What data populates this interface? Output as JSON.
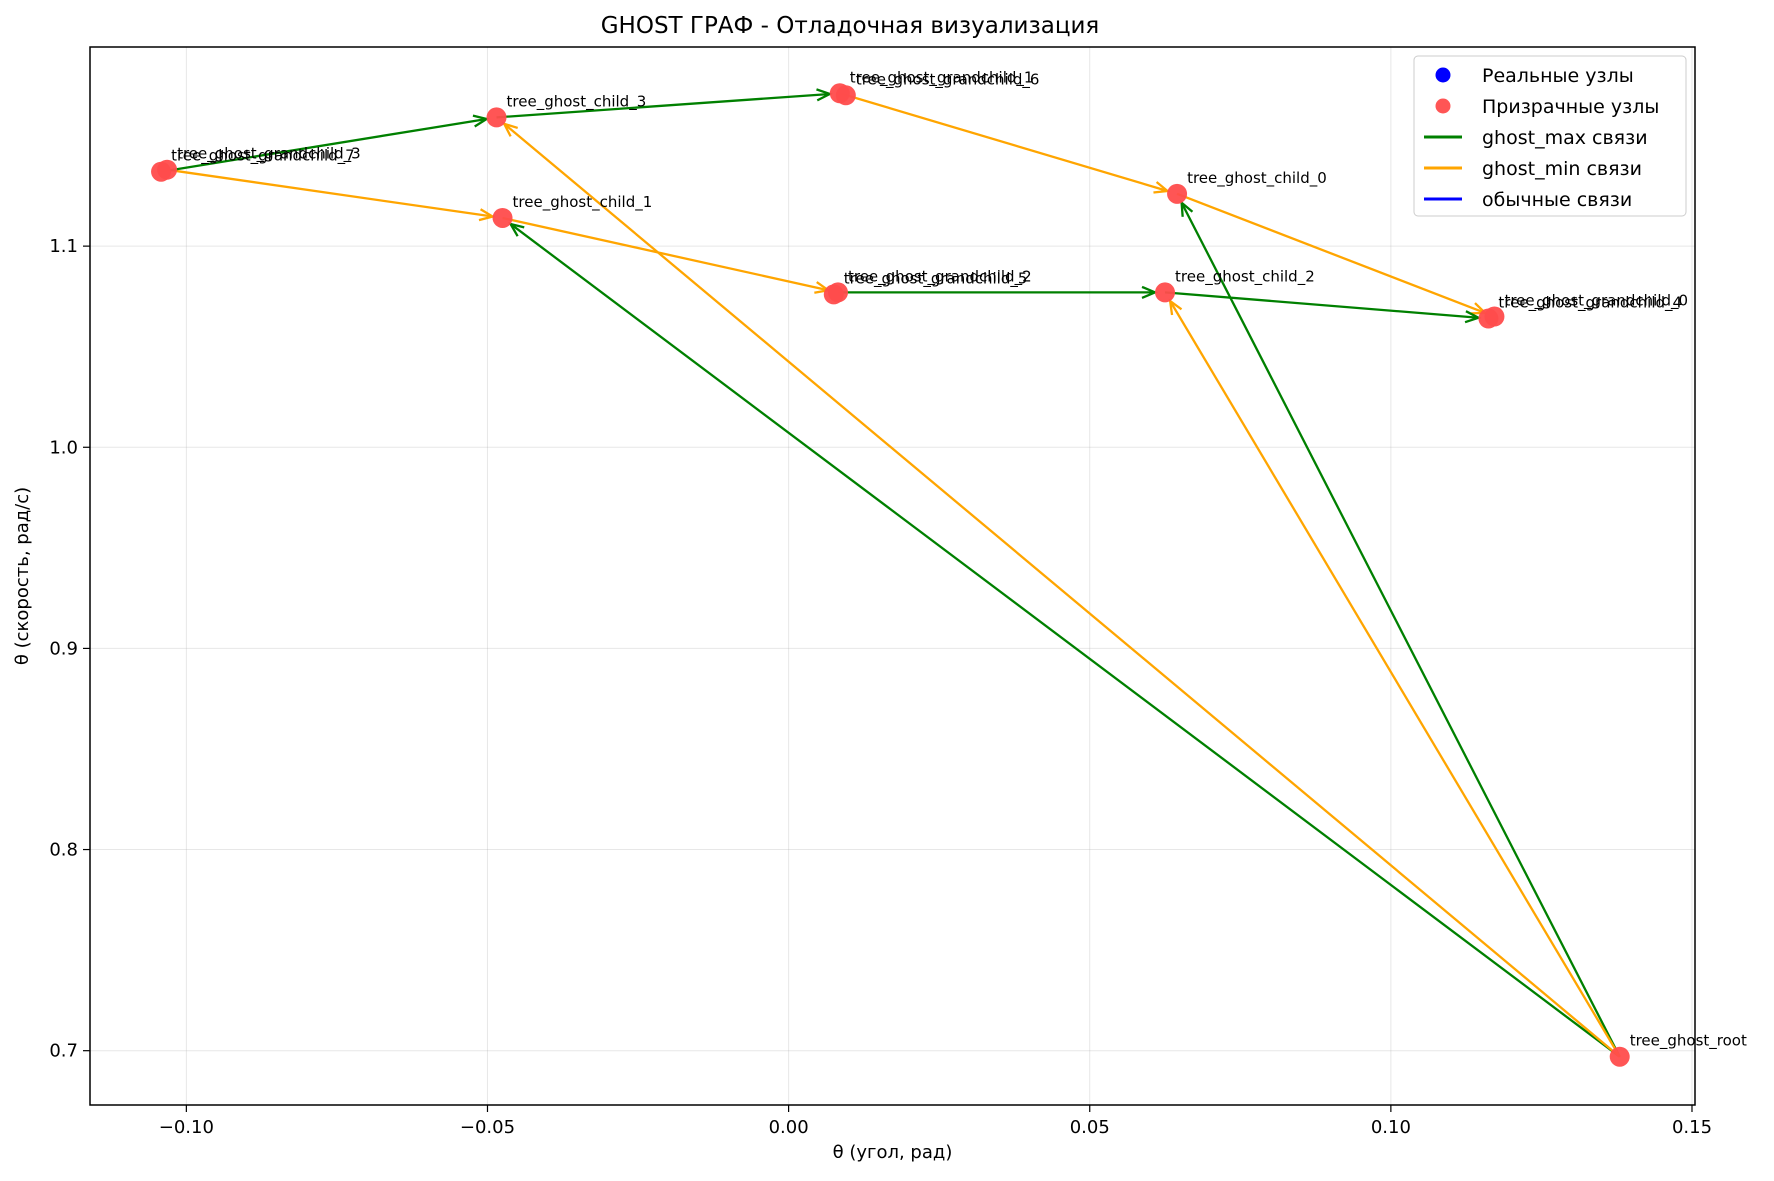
{
  "chart_data": {
    "type": "scatter",
    "title": "GHOST ГРАФ - Отладочная визуализация",
    "xlabel": "θ (угол, рад)",
    "ylabel": "θ (скорость, рад/с)",
    "xlim": [
      -0.116,
      0.1505
    ],
    "ylim": [
      0.673,
      1.199
    ],
    "xticks": [
      -0.1,
      -0.05,
      0.0,
      0.05,
      0.1,
      0.15
    ],
    "xtick_labels": [
      "−0.10",
      "−0.05",
      "0.00",
      "0.05",
      "0.10",
      "0.15"
    ],
    "yticks": [
      0.7,
      0.8,
      0.9,
      1.0,
      1.1
    ],
    "ytick_labels": [
      "0.7",
      "0.8",
      "0.9",
      "1.0",
      "1.1"
    ],
    "grid": true,
    "legend_position": "top-right",
    "legend": [
      {
        "label": "Реальные узлы",
        "kind": "marker",
        "color": "#0000ff"
      },
      {
        "label": "Призрачные узлы",
        "kind": "marker",
        "color": "#ff4c4c"
      },
      {
        "label": "ghost_max связи",
        "kind": "line",
        "color": "#008000"
      },
      {
        "label": "ghost_min связи",
        "kind": "line",
        "color": "#ffa500"
      },
      {
        "label": "обычные связи",
        "kind": "line",
        "color": "#0000ff"
      }
    ],
    "nodes": [
      {
        "id": "root",
        "label": "tree_ghost_root",
        "x": 0.138,
        "y": 0.697
      },
      {
        "id": "c0",
        "label": "tree_ghost_child_0",
        "x": 0.0645,
        "y": 1.126
      },
      {
        "id": "c1",
        "label": "tree_ghost_child_1",
        "x": -0.0475,
        "y": 1.114
      },
      {
        "id": "c2",
        "label": "tree_ghost_child_2",
        "x": 0.0625,
        "y": 1.077
      },
      {
        "id": "c3",
        "label": "tree_ghost_child_3",
        "x": -0.0485,
        "y": 1.164
      },
      {
        "id": "g0",
        "label": "tree_ghost_grandchild_0",
        "x": 0.1172,
        "y": 1.065
      },
      {
        "id": "g4",
        "label": "tree_ghost_grandchild_4",
        "x": 0.1162,
        "y": 1.064
      },
      {
        "id": "g1",
        "label": "tree_ghost_grandchild_1",
        "x": 0.0085,
        "y": 1.176
      },
      {
        "id": "g6",
        "label": "tree_ghost_grandchild_6",
        "x": 0.0095,
        "y": 1.175
      },
      {
        "id": "g2",
        "label": "tree_ghost_grandchild_2",
        "x": 0.0082,
        "y": 1.077
      },
      {
        "id": "g5",
        "label": "tree_ghost_grandchild_5",
        "x": 0.0075,
        "y": 1.076
      },
      {
        "id": "g3",
        "label": "tree_ghost_grandchild_3",
        "x": -0.1032,
        "y": 1.138
      },
      {
        "id": "g7",
        "label": "tree_ghost_grandchild_7",
        "x": -0.1042,
        "y": 1.137
      }
    ],
    "edges": [
      {
        "from": "root",
        "to": "c0",
        "type": "ghost_max"
      },
      {
        "from": "root",
        "to": "c1",
        "type": "ghost_max"
      },
      {
        "from": "root",
        "to": "c2",
        "type": "ghost_min"
      },
      {
        "from": "root",
        "to": "c3",
        "type": "ghost_min"
      },
      {
        "from": "c0",
        "to": "g0",
        "type": "ghost_min"
      },
      {
        "from": "c1",
        "to": "g2",
        "type": "ghost_min"
      },
      {
        "from": "c2",
        "to": "g4",
        "type": "ghost_max"
      },
      {
        "from": "c3",
        "to": "g1",
        "type": "ghost_max"
      },
      {
        "from": "g1",
        "to": "c0",
        "type": "ghost_min"
      },
      {
        "from": "g3",
        "to": "c1",
        "type": "ghost_min"
      },
      {
        "from": "g2",
        "to": "c2",
        "type": "ghost_max"
      },
      {
        "from": "g7",
        "to": "c3",
        "type": "ghost_max"
      }
    ],
    "colors": {
      "ghost_max": "#008000",
      "ghost_min": "#ffa500",
      "ghost_node": "#ff4c4c",
      "real_node": "#0000ff",
      "regular": "#0000ff"
    }
  }
}
